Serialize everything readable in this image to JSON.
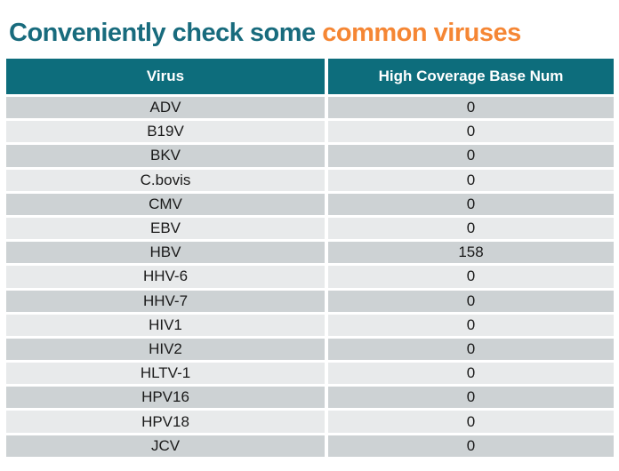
{
  "title": {
    "prefix": "Conveniently check some ",
    "highlight": "common viruses"
  },
  "colors": {
    "title_teal": "#186b7d",
    "accent_orange": "#f58634",
    "header_bg": "#0d6d7c",
    "row_dark": "#cdd2d4",
    "row_light": "#e8eaeb"
  },
  "table": {
    "columns": [
      "Virus",
      "High Coverage Base Num"
    ],
    "rows": [
      {
        "virus": "ADV",
        "value": "0"
      },
      {
        "virus": "B19V",
        "value": "0"
      },
      {
        "virus": "BKV",
        "value": "0"
      },
      {
        "virus": "C.bovis",
        "value": "0"
      },
      {
        "virus": "CMV",
        "value": "0"
      },
      {
        "virus": "EBV",
        "value": "0"
      },
      {
        "virus": "HBV",
        "value": "158"
      },
      {
        "virus": "HHV-6",
        "value": "0"
      },
      {
        "virus": "HHV-7",
        "value": "0"
      },
      {
        "virus": "HIV1",
        "value": "0"
      },
      {
        "virus": "HIV2",
        "value": "0"
      },
      {
        "virus": "HLTV-1",
        "value": "0"
      },
      {
        "virus": "HPV16",
        "value": "0"
      },
      {
        "virus": "HPV18",
        "value": "0"
      },
      {
        "virus": "JCV",
        "value": "0"
      }
    ]
  },
  "chart_data": {
    "type": "table",
    "title": "Conveniently check some common viruses",
    "columns": [
      "Virus",
      "High Coverage Base Num"
    ],
    "rows": [
      [
        "ADV",
        0
      ],
      [
        "B19V",
        0
      ],
      [
        "BKV",
        0
      ],
      [
        "C.bovis",
        0
      ],
      [
        "CMV",
        0
      ],
      [
        "EBV",
        0
      ],
      [
        "HBV",
        158
      ],
      [
        "HHV-6",
        0
      ],
      [
        "HHV-7",
        0
      ],
      [
        "HIV1",
        0
      ],
      [
        "HIV2",
        0
      ],
      [
        "HLTV-1",
        0
      ],
      [
        "HPV16",
        0
      ],
      [
        "HPV18",
        0
      ],
      [
        "JCV",
        0
      ]
    ]
  }
}
